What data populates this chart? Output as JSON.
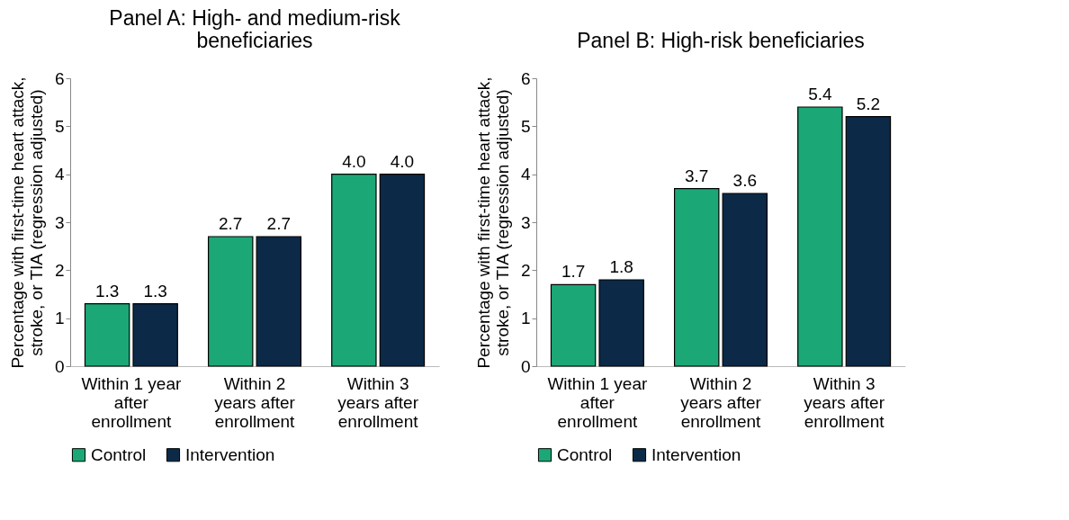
{
  "chart_data": [
    {
      "type": "bar",
      "title": "Panel A: High- and medium-risk beneficiaries",
      "ylabel": "Percentage with first-time heart attack, stroke, or TIA (regression adjusted)",
      "categories": [
        "Within 1 year after enrollment",
        "Within 2 years after enrollment",
        "Within 3 years after enrollment"
      ],
      "series": [
        {
          "name": "Control",
          "color": "#1ba876",
          "values": [
            1.3,
            2.7,
            4.0
          ],
          "value_labels": [
            "1.3",
            "2.7",
            "4.0"
          ]
        },
        {
          "name": "Intervention",
          "color": "#0c2a48",
          "values": [
            1.3,
            2.7,
            4.0
          ],
          "value_labels": [
            "1.3",
            "2.7",
            "4.0"
          ]
        }
      ],
      "ylim": [
        0,
        6
      ],
      "yticks": [
        0,
        1,
        2,
        3,
        4,
        5,
        6
      ],
      "grid": false,
      "legend": "bottom"
    },
    {
      "type": "bar",
      "title": "Panel B: High-risk beneficiaries",
      "ylabel": "Percentage with first-time heart attack, stroke, or TIA (regression adjusted)",
      "categories": [
        "Within 1 year after enrollment",
        "Within 2 years after enrollment",
        "Within 3 years after enrollment"
      ],
      "series": [
        {
          "name": "Control",
          "color": "#1ba876",
          "values": [
            1.7,
            3.7,
            5.4
          ],
          "value_labels": [
            "1.7",
            "3.7",
            "5.4"
          ]
        },
        {
          "name": "Intervention",
          "color": "#0c2a48",
          "values": [
            1.8,
            3.6,
            5.2
          ],
          "value_labels": [
            "1.8",
            "3.6",
            "5.2"
          ]
        }
      ],
      "ylim": [
        0,
        6
      ],
      "yticks": [
        0,
        1,
        2,
        3,
        4,
        5,
        6
      ],
      "grid": false,
      "legend": "bottom"
    }
  ]
}
